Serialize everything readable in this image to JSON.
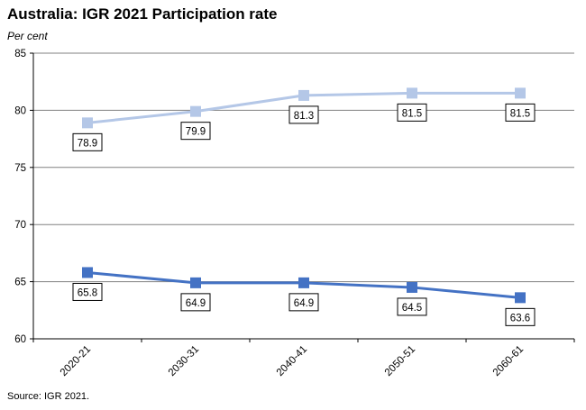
{
  "title": "Australia: IGR 2021 Participation rate",
  "unit": "Per cent",
  "source": "Source: IGR 2021.",
  "chart_data": {
    "type": "line",
    "title": "Australia: IGR 2021 Participation rate",
    "ylabel": "Per cent",
    "xlabel": "",
    "categories": [
      "2020-21",
      "2030-31",
      "2040-41",
      "2050-51",
      "2060-61"
    ],
    "ylim": [
      60,
      85
    ],
    "yticks": [
      60,
      65,
      70,
      75,
      80,
      85
    ],
    "grid": true,
    "legend": "none",
    "series": [
      {
        "values": [
          78.9,
          79.9,
          81.3,
          81.5,
          81.5
        ],
        "color": "#b4c7e7",
        "labels": [
          "78.9",
          "79.9",
          "81.3",
          "81.5",
          "81.5"
        ]
      },
      {
        "values": [
          65.8,
          64.9,
          64.9,
          64.5,
          63.6
        ],
        "color": "#4472c4",
        "labels": [
          "65.8",
          "64.9",
          "64.9",
          "64.5",
          "63.6"
        ]
      }
    ]
  }
}
